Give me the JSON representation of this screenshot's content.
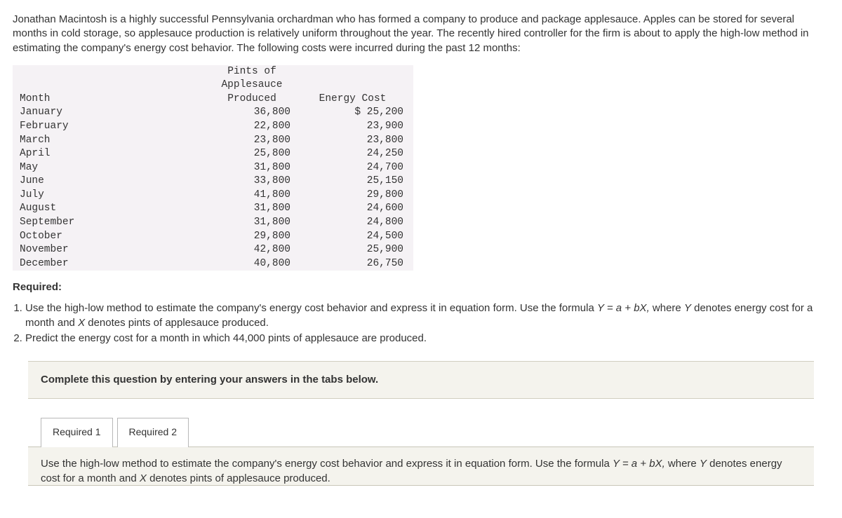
{
  "intro": "Jonathan Macintosh is a highly successful Pennsylvania orchardman who has formed a company to produce and package applesauce. Apples can be stored for several months in cold storage, so applesauce production is relatively uniform throughout the year. The recently hired controller for the firm is about to apply the high-low method in estimating the company's energy cost behavior. The following costs were incurred during the past 12 months:",
  "table": {
    "headers": {
      "month": "Month",
      "pints": "Pints of\nApplesauce\nProduced",
      "cost": "Energy Cost"
    },
    "rows": [
      {
        "month": "January",
        "pints": "36,800",
        "cost": "$ 25,200"
      },
      {
        "month": "February",
        "pints": "22,800",
        "cost": "23,900"
      },
      {
        "month": "March",
        "pints": "23,800",
        "cost": "23,800"
      },
      {
        "month": "April",
        "pints": "25,800",
        "cost": "24,250"
      },
      {
        "month": "May",
        "pints": "31,800",
        "cost": "24,700"
      },
      {
        "month": "June",
        "pints": "33,800",
        "cost": "25,150"
      },
      {
        "month": "July",
        "pints": "41,800",
        "cost": "29,800"
      },
      {
        "month": "August",
        "pints": "31,800",
        "cost": "24,600"
      },
      {
        "month": "September",
        "pints": "31,800",
        "cost": "24,800"
      },
      {
        "month": "October",
        "pints": "29,800",
        "cost": "24,500"
      },
      {
        "month": "November",
        "pints": "42,800",
        "cost": "25,900"
      },
      {
        "month": "December",
        "pints": "40,800",
        "cost": "26,750"
      }
    ],
    "bg_color": "#f5f2f5"
  },
  "required_label": "Required:",
  "requirements": {
    "r1_a": "Use the high-low method to estimate the company's energy cost behavior and express it in equation form. Use the formula ",
    "r1_formula1": "Y = a + bX,",
    "r1_b": " where ",
    "r1_y": "Y",
    "r1_c": " denotes energy cost for a month and ",
    "r1_x": "X",
    "r1_d": " denotes pints of applesauce produced.",
    "r2": "Predict the energy cost for a month in which 44,000 pints of applesauce are produced."
  },
  "instruction": "Complete this question by entering your answers in the tabs below.",
  "tabs": {
    "t1": "Required 1",
    "t2": "Required 2"
  },
  "tab1_prompt_a": "Use the high-low method to estimate the company's energy cost behavior and express it in equation form. Use the formula ",
  "tab1_prompt_y": "Y = a + bX,",
  "tab1_prompt_b": " where ",
  "tab1_prompt_yv": "Y",
  "tab1_prompt_c": " denotes energy cost for a month and ",
  "tab1_prompt_xv": "X",
  "tab1_prompt_d": " denotes pints of applesauce produced."
}
